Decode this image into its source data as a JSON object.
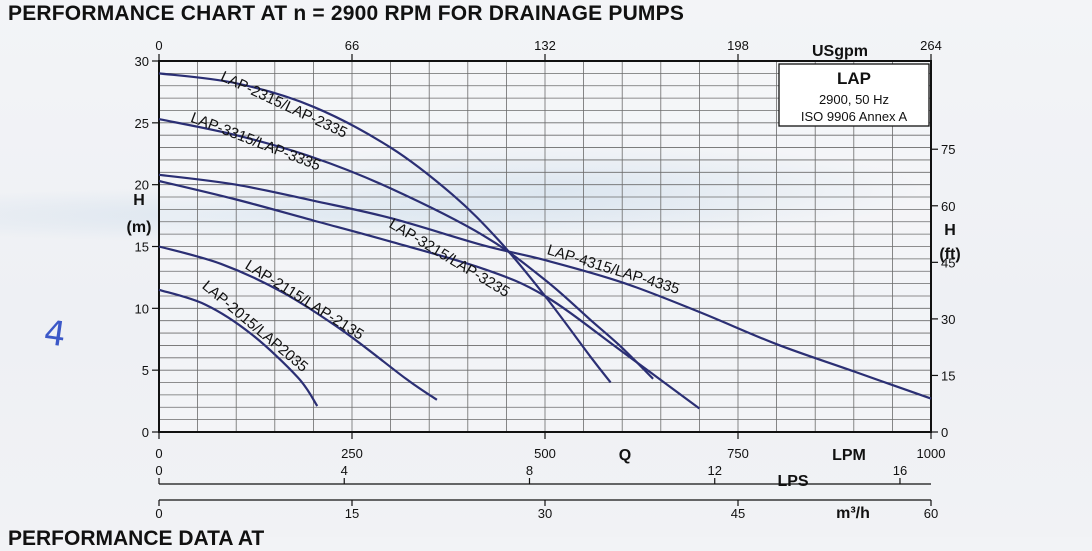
{
  "title": "PERFORMANCE CHART AT n = 2900 RPM FOR DRAINAGE PUMPS",
  "bottom_heading": "PERFORMANCE DATA AT",
  "handwritten_mark": "4",
  "chart_data": {
    "type": "line",
    "colors": {
      "curve": "#2b2f74",
      "grid": "#6b6b6b",
      "frame": "#111111",
      "axis_text": "#111111"
    },
    "legend_box": {
      "lines": [
        "LAP",
        "2900, 50 Hz",
        "ISO 9906 Annex A"
      ],
      "placement": "top-right"
    },
    "axes": {
      "q_label": "Q",
      "lpm": {
        "label": "LPM",
        "ticks": [
          "0",
          "250",
          "500",
          "750",
          "1000"
        ],
        "range": [
          0,
          1000
        ]
      },
      "usgpm": {
        "label": "USgpm",
        "ticks": [
          "0",
          "66",
          "132",
          "198",
          "264"
        ],
        "range": [
          0,
          264
        ]
      },
      "lps": {
        "label": "LPS",
        "ticks": [
          "0",
          "4",
          "8",
          "12",
          "16"
        ],
        "range": [
          0,
          16.67
        ]
      },
      "m3h": {
        "label": "m³/h",
        "ticks": [
          "0",
          "15",
          "30",
          "45",
          "60"
        ],
        "range": [
          0,
          60
        ]
      },
      "h_m": {
        "label_top": "H",
        "label_bottom": "(m)",
        "ticks": [
          "0",
          "5",
          "10",
          "15",
          "20",
          "25",
          "30"
        ],
        "range": [
          0,
          30
        ]
      },
      "h_ft": {
        "label_top": "H",
        "label_bottom": "(ft)",
        "ticks": [
          "0",
          "15",
          "30",
          "45",
          "60",
          "75"
        ],
        "range": [
          0,
          98.4
        ]
      }
    },
    "grid": true,
    "x_unit": "LPM",
    "y_unit": "m",
    "series": [
      {
        "name": "LAP-2315/LAP-2335",
        "x": [
          0,
          100,
          200,
          300,
          380,
          440,
          500,
          560,
          585
        ],
        "y": [
          29,
          28.2,
          26.3,
          23,
          19.2,
          15.5,
          11,
          6,
          4
        ]
      },
      {
        "name": "LAP-3315/LAP-3335",
        "x": [
          0,
          100,
          200,
          300,
          420,
          500,
          560,
          600,
          640
        ],
        "y": [
          25.3,
          24,
          22.2,
          19.7,
          15.9,
          12.3,
          9,
          6.8,
          4.3
        ]
      },
      {
        "name": "LAP-4315/LAP-4335",
        "x": [
          0,
          100,
          200,
          300,
          420,
          500,
          600,
          700,
          800,
          900,
          1000
        ],
        "y": [
          20.8,
          20,
          18.7,
          17.3,
          15.1,
          13.9,
          12.1,
          9.7,
          7.1,
          4.9,
          2.7
        ]
      },
      {
        "name": "LAP-3215/LAP-3235",
        "x": [
          0,
          100,
          200,
          300,
          420,
          500,
          600,
          700
        ],
        "y": [
          20.3,
          18.8,
          17.1,
          15.4,
          13.2,
          11,
          6.5,
          1.9
        ]
      },
      {
        "name": "LAP-2115/LAP-2135",
        "x": [
          0,
          80,
          160,
          240,
          320,
          360
        ],
        "y": [
          15,
          13.6,
          11.3,
          8.1,
          4.3,
          2.6
        ]
      },
      {
        "name": "LAP-2015/LAP2035",
        "x": [
          0,
          60,
          120,
          180,
          205
        ],
        "y": [
          11.5,
          10.3,
          7.9,
          4.4,
          2.1
        ]
      }
    ]
  }
}
